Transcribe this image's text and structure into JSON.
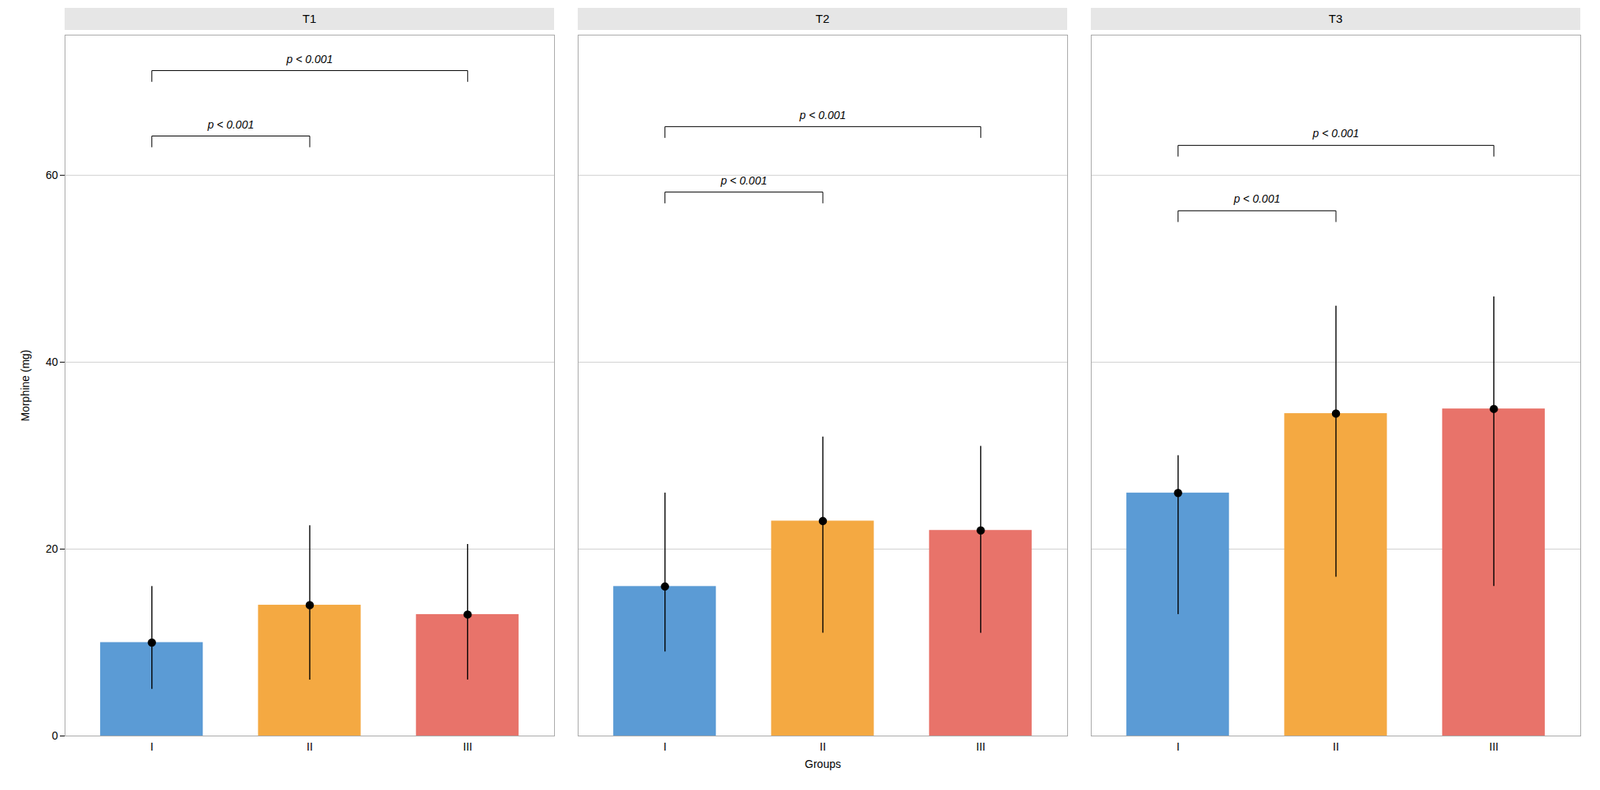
{
  "chart_data": [
    {
      "type": "bar",
      "title": "T1",
      "categories": [
        "I",
        "II",
        "III"
      ],
      "values": [
        10.0,
        14.0,
        13.0
      ],
      "colors": [
        "#5b9bd5",
        "#f4a942",
        "#e8736a"
      ],
      "means": [
        10.0,
        14.0,
        13.0
      ],
      "ci_low": [
        5.0,
        6.0,
        6.0
      ],
      "ci_high": [
        16.0,
        22.5,
        20.5
      ],
      "annotations": [
        {
          "text": "p < 0.001",
          "from": "I",
          "to": "II",
          "y": 63,
          "y_top": 64.2
        },
        {
          "text": "p < 0.001",
          "from": "I",
          "to": "III",
          "y": 70,
          "y_top": 71.2
        }
      ],
      "ylim": [
        0,
        75
      ],
      "yticks": [
        0,
        20,
        40,
        60
      ],
      "ylabel": "Morphine (mg)",
      "grid": true
    },
    {
      "type": "bar",
      "title": "T2",
      "categories": [
        "I",
        "II",
        "III"
      ],
      "values": [
        16.0,
        23.0,
        22.0
      ],
      "colors": [
        "#5b9bd5",
        "#f4a942",
        "#e8736a"
      ],
      "means": [
        16.0,
        23.0,
        22.0
      ],
      "ci_low": [
        9.0,
        11.0,
        11.0
      ],
      "ci_high": [
        26.0,
        32.0,
        31.0
      ],
      "annotations": [
        {
          "text": "p < 0.001",
          "from": "I",
          "to": "II",
          "y": 57,
          "y_top": 58.2
        },
        {
          "text": "p < 0.001",
          "from": "I",
          "to": "III",
          "y": 64,
          "y_top": 65.2
        }
      ],
      "ylim": [
        0,
        75
      ],
      "yticks": [
        0,
        20,
        40,
        60
      ],
      "xlabel": "Groups",
      "grid": true,
      "tick_labels": "x"
    },
    {
      "type": "bar",
      "title": "T3",
      "categories": [
        "I",
        "II",
        "III"
      ],
      "values": [
        26.0,
        34.5,
        35.0
      ],
      "colors": [
        "#5b9bd5",
        "#f4a942",
        "#e8736a"
      ],
      "means": [
        26.0,
        34.5,
        35.0
      ],
      "ci_low": [
        13.0,
        17.0,
        16.0
      ],
      "ci_high": [
        30.0,
        46.0,
        47.0
      ],
      "annotations": [
        {
          "text": "p < 0.001",
          "from": "I",
          "to": "II",
          "y": 55,
          "y_top": 56.2
        },
        {
          "text": "p < 0.001",
          "from": "I",
          "to": "III",
          "y": 62,
          "y_top": 63.2
        }
      ],
      "ylim": [
        0,
        75
      ],
      "yticks": [
        0,
        20,
        40,
        60
      ],
      "grid": true,
      "tick_labels": "x"
    }
  ]
}
